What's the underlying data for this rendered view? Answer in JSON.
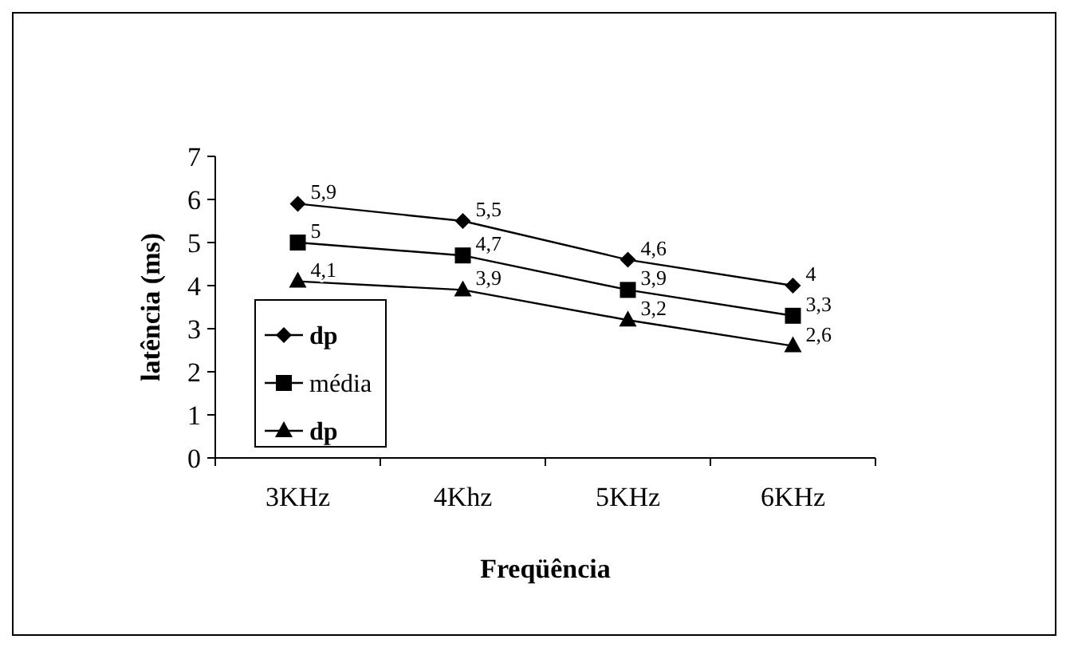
{
  "chart_data": {
    "type": "line",
    "xlabel": "Freqüência",
    "ylabel": "latência (ms)",
    "categories": [
      "3KHz",
      "4Khz",
      "5KHz",
      "6KHz"
    ],
    "ylim": [
      0,
      7
    ],
    "yticks": [
      0,
      1,
      2,
      3,
      4,
      5,
      6,
      7
    ],
    "grid": false,
    "legend": "bottom left",
    "line_style": "solid",
    "series": [
      {
        "name": "dp",
        "color": "#000000",
        "marker": "diamond",
        "values": [
          5.9,
          5.5,
          4.6,
          4
        ],
        "value_labels": [
          "5,9",
          "5,5",
          "4,6",
          "4"
        ]
      },
      {
        "name": "média",
        "color": "#000000",
        "marker": "square",
        "values": [
          5,
          4.7,
          3.9,
          3.3
        ],
        "value_labels": [
          "5",
          "4,7",
          "3,9",
          "3,3"
        ]
      },
      {
        "name": "dp",
        "color": "#000000",
        "marker": "triangle",
        "values": [
          4.1,
          3.9,
          3.2,
          2.6
        ],
        "value_labels": [
          "4,1",
          "3,9",
          "3,2",
          "2,6"
        ]
      }
    ]
  }
}
